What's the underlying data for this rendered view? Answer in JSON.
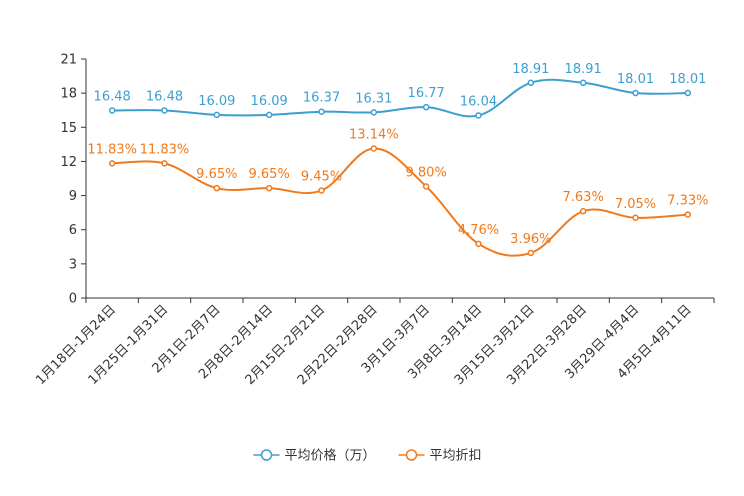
{
  "chart_data": {
    "type": "line",
    "categories": [
      "1月18日-1月24日",
      "1月25日-1月31日",
      "2月1日-2月7日",
      "2月8日-2月14日",
      "2月15日-2月21日",
      "2月22日-2月28日",
      "3月1日-3月7日",
      "3月8日-3月14日",
      "3月15日-3月21日",
      "3月22日-3月28日",
      "3月29日-4月4日",
      "4月5日-4月11日"
    ],
    "series": [
      {
        "name": "平均价格（万）",
        "color": "#3d9fd0",
        "values": [
          16.48,
          16.48,
          16.09,
          16.09,
          16.37,
          16.31,
          16.77,
          16.04,
          18.91,
          18.91,
          18.01,
          18.01
        ],
        "labels": [
          "16.48",
          "16.48",
          "16.09",
          "16.09",
          "16.37",
          "16.31",
          "16.77",
          "16.04",
          "18.91",
          "18.91",
          "18.01",
          "18.01"
        ]
      },
      {
        "name": "平均折扣",
        "color": "#f07a1c",
        "values": [
          11.83,
          11.83,
          9.65,
          9.65,
          9.45,
          13.14,
          9.8,
          4.76,
          3.96,
          7.63,
          7.05,
          7.33
        ],
        "labels": [
          "11.83%",
          "11.83%",
          "9.65%",
          "9.65%",
          "9.45%",
          "13.14%",
          "9.80%",
          "4.76%",
          "3.96%",
          "7.63%",
          "7.05%",
          "7.33%"
        ]
      }
    ],
    "yticks": [
      "0",
      "3",
      "6",
      "9",
      "12",
      "15",
      "18",
      "21"
    ],
    "ylim": [
      0,
      21
    ],
    "grid": false,
    "legend_position": "bottom-center"
  }
}
